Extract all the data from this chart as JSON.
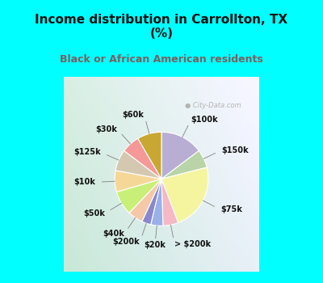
{
  "title": "Income distribution in Carrollton, TX\n(%)",
  "subtitle": "Black or African American residents",
  "labels": [
    "$100k",
    "$150k",
    "$75k",
    "> $200k",
    "$20k",
    "$200k",
    "$40k",
    "$50k",
    "$10k",
    "$125k",
    "$30k",
    "$60k"
  ],
  "values": [
    14,
    6,
    22,
    5,
    4,
    3,
    5,
    8,
    7,
    7,
    6,
    8
  ],
  "colors": [
    "#b8aed4",
    "#b8d4a8",
    "#f5f5a0",
    "#f5b8c4",
    "#9ab0e8",
    "#8888cc",
    "#f5c8a8",
    "#c8f078",
    "#f5d898",
    "#d4c8b0",
    "#f59898",
    "#c8a832"
  ],
  "bg_color": "#00ffff",
  "chart_bg_left": "#c8e8d8",
  "chart_bg_right": "#e8f0f8",
  "watermark": "  City-Data.com",
  "title_fontsize": 11,
  "subtitle_fontsize": 9,
  "subtitle_color": "#7a6060",
  "label_fontsize": 7
}
